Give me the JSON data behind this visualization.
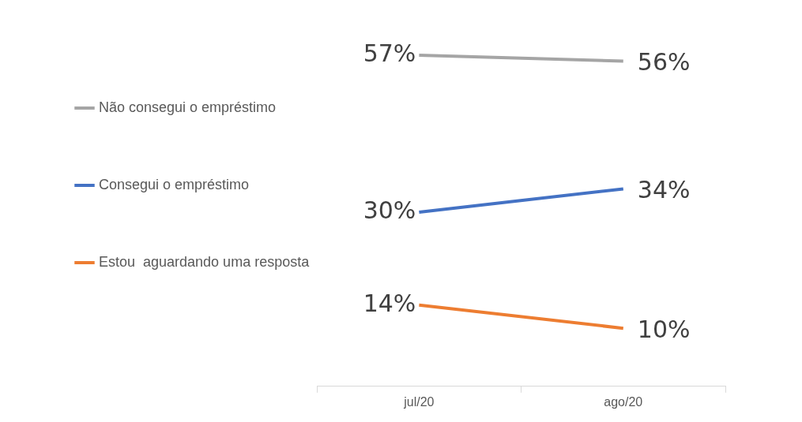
{
  "chart_data": {
    "type": "line",
    "categories": [
      "jul/20",
      "ago/20"
    ],
    "series": [
      {
        "name": "Não consegui o empréstimo",
        "color": "#a5a5a5",
        "values": [
          57,
          56
        ],
        "value_labels": [
          "57%",
          "56%"
        ]
      },
      {
        "name": "Consegui o empréstimo",
        "color": "#4472c4",
        "values": [
          30,
          34
        ],
        "value_labels": [
          "30%",
          "34%"
        ]
      },
      {
        "name": "Estou  aguardando uma resposta",
        "color": "#ed7d31",
        "values": [
          14,
          10
        ],
        "value_labels": [
          "14%",
          "10%"
        ]
      }
    ],
    "legend": "left",
    "grid": false,
    "marker": "none",
    "line_style": "solid"
  }
}
